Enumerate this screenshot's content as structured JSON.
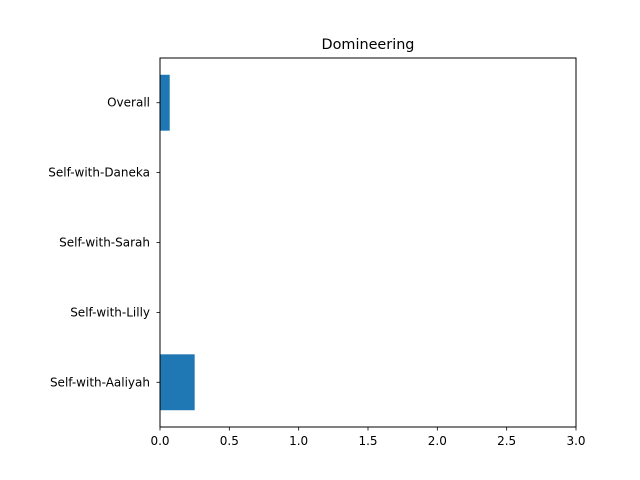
{
  "chart_data": {
    "type": "bar",
    "orientation": "horizontal",
    "title": "Domineering",
    "xlabel": "",
    "ylabel": "",
    "categories": [
      "Overall",
      "Self-with-Daneka",
      "Self-with-Sarah",
      "Self-with-Lilly",
      "Self-with-Aaliyah"
    ],
    "values": [
      0.07,
      0.0,
      0.0,
      0.0,
      0.25
    ],
    "xlim": [
      0,
      3.0
    ],
    "xticks": [
      "0.0",
      "0.5",
      "1.0",
      "1.5",
      "2.0",
      "2.5",
      "3.0"
    ],
    "bar_color": "#1f77b4",
    "grid": false,
    "legend": "none"
  }
}
